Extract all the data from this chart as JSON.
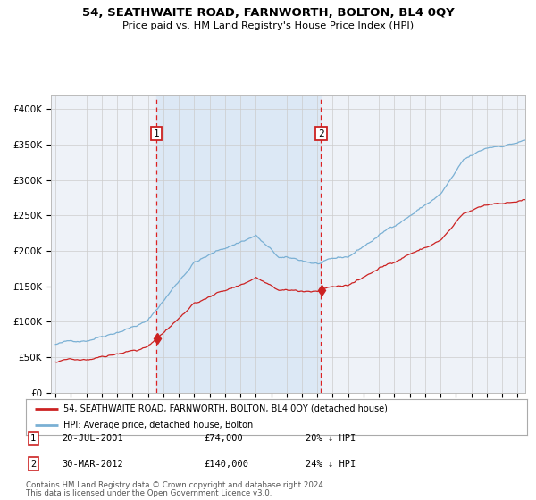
{
  "title": "54, SEATHWAITE ROAD, FARNWORTH, BOLTON, BL4 0QY",
  "subtitle": "Price paid vs. HM Land Registry's House Price Index (HPI)",
  "legend_line1": "54, SEATHWAITE ROAD, FARNWORTH, BOLTON, BL4 0QY (detached house)",
  "legend_line2": "HPI: Average price, detached house, Bolton",
  "footnote1": "Contains HM Land Registry data © Crown copyright and database right 2024.",
  "footnote2": "This data is licensed under the Open Government Licence v3.0.",
  "sale1_date": "20-JUL-2001",
  "sale1_price": "£74,000",
  "sale1_hpi": "20% ↓ HPI",
  "sale2_date": "30-MAR-2012",
  "sale2_price": "£140,000",
  "sale2_hpi": "24% ↓ HPI",
  "red_line_color": "#cc2222",
  "blue_line_color": "#7ab0d4",
  "shade_color": "#dce8f5",
  "dashed_line_color": "#dd2222",
  "background_color": "#ffffff",
  "plot_bg_color": "#eef2f8",
  "grid_color": "#cccccc",
  "sale1_year": 2001.55,
  "sale2_year": 2012.24,
  "ylim_max": 420000,
  "ylim_min": 0,
  "xmin": 1994.7,
  "xmax": 2025.5
}
